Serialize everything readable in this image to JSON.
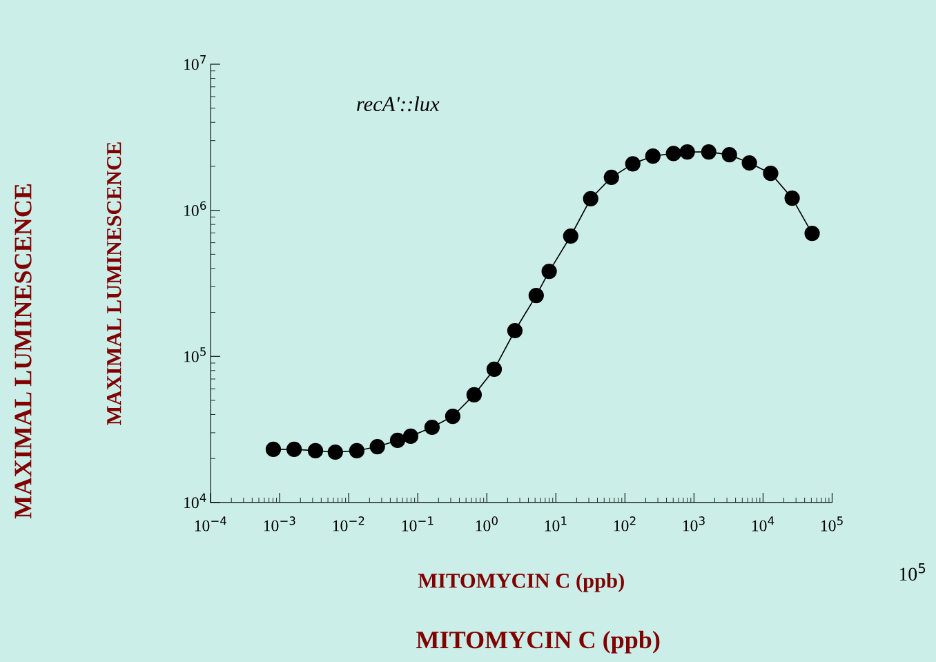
{
  "chart_data": {
    "type": "line",
    "xlabel": "MITOMYCIN C (ppb)",
    "ylabel": "MAXIMAL LUMINESCENCE",
    "log": "xy",
    "marker": "circle",
    "line_style": "solid",
    "grid": false,
    "legend": false,
    "xlim": [
      0.0001,
      100000
    ],
    "ylim": [
      10000,
      10000000
    ],
    "xticks": [
      {
        "value": 0.0001,
        "label": "10$^{−4}$"
      },
      {
        "value": 0.001,
        "label": "10$^{−3}$"
      },
      {
        "value": 0.01,
        "label": "10$^{−2}$"
      },
      {
        "value": 0.1,
        "label": "10$^{−1}$"
      },
      {
        "value": 1,
        "label": "10$^{0}$"
      },
      {
        "value": 10,
        "label": "10$^{1}$"
      },
      {
        "value": 100,
        "label": "10$^{2}$"
      },
      {
        "value": 1000,
        "label": "10$^{3}$"
      },
      {
        "value": 10000,
        "label": "10$^{4}$"
      },
      {
        "value": 100000,
        "label": "10$^{5}$"
      }
    ],
    "yticks": [
      {
        "value": 10000,
        "label": "10$^{4}$"
      },
      {
        "value": 100000,
        "label": "10$^{5}$"
      },
      {
        "value": 1000000,
        "label": "10$^{6}$"
      },
      {
        "value": 10000000,
        "label": "10$^{7}$"
      }
    ],
    "x": [
      0.00081,
      0.00162,
      0.0033,
      0.0064,
      0.0131,
      0.026,
      0.051,
      0.079,
      0.161,
      0.321,
      0.655,
      1.28,
      2.55,
      5.19,
      8.0,
      16.4,
      31.9,
      63.7,
      130,
      254,
      505,
      800,
      1633,
      3260,
      6340,
      12900,
      26400,
      51400
    ],
    "series": [
      {
        "color": "#000000",
        "values": [
          23100,
          23100,
          22600,
          22100,
          22600,
          24100,
          26600,
          28400,
          32700,
          38900,
          54600,
          81600,
          150000,
          261000,
          382000,
          666000,
          1200000,
          1680000,
          2080000,
          2350000,
          2450000,
          2510000,
          2510000,
          2400000,
          2110000,
          1790000,
          1210000,
          695000
        ]
      }
    ],
    "annotations": [
      "recA'::lux",
      "MAXIMAL LUMINESCENCE",
      "MITOMYCIN C (ppb)",
      "10$^{5}$"
    ]
  }
}
